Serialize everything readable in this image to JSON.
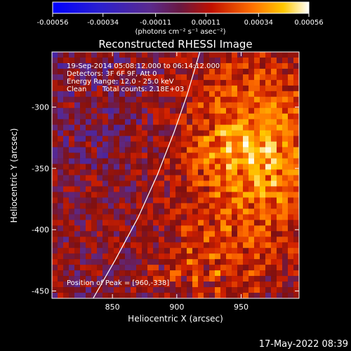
{
  "chart_data": {
    "type": "heatmap",
    "title": "Reconstructed RHESSI Image",
    "xlabel": "Heliocentric X (arcsec)",
    "ylabel": "Heliocentric Y (arcsec)",
    "xlim": [
      803,
      995
    ],
    "ylim": [
      -456,
      -255
    ],
    "x_ticks": [
      850,
      900,
      950
    ],
    "y_ticks": [
      -300,
      -350,
      -400,
      -450
    ],
    "colorbar": {
      "min": -0.00056,
      "max": 0.00056,
      "ticks": [
        {
          "value": -0.00056,
          "label": "-0.00056"
        },
        {
          "value": -0.00034,
          "label": "-0.00034"
        },
        {
          "value": -0.00011,
          "label": "-0.00011"
        },
        {
          "value": 0.00011,
          "label": "0.00011"
        },
        {
          "value": 0.00034,
          "label": "0.00034"
        },
        {
          "value": 0.00056,
          "label": "0.00056"
        }
      ],
      "units": "(photons cm⁻² s⁻¹ asec⁻²)",
      "colormap": [
        "#0000ff",
        "#3a1fb0",
        "#5a2a8e",
        "#801010",
        "#d02000",
        "#ff7000",
        "#ffc800",
        "#ffffff"
      ]
    },
    "annotations": {
      "time_range": "19-Sep-2014 05:08:12.000 to 06:14:12.000",
      "detectors": "Detectors: 3F 6F 9F, Att 0",
      "energy": "Energy Range: 12.0 - 25.0 keV",
      "method": "Clean",
      "counts": "Total counts: 2.18E+03",
      "peak": "Position of Peak = [960,-338]"
    },
    "peak": {
      "x": 960,
      "y": -338
    },
    "limb_arc": [
      {
        "x": 835,
        "y": -456
      },
      {
        "x": 852,
        "y": -425
      },
      {
        "x": 870,
        "y": -390
      },
      {
        "x": 885,
        "y": -355
      },
      {
        "x": 898,
        "y": -320
      },
      {
        "x": 908,
        "y": -290
      },
      {
        "x": 918,
        "y": -255
      }
    ]
  },
  "timestamp": "17-May-2022 08:39"
}
